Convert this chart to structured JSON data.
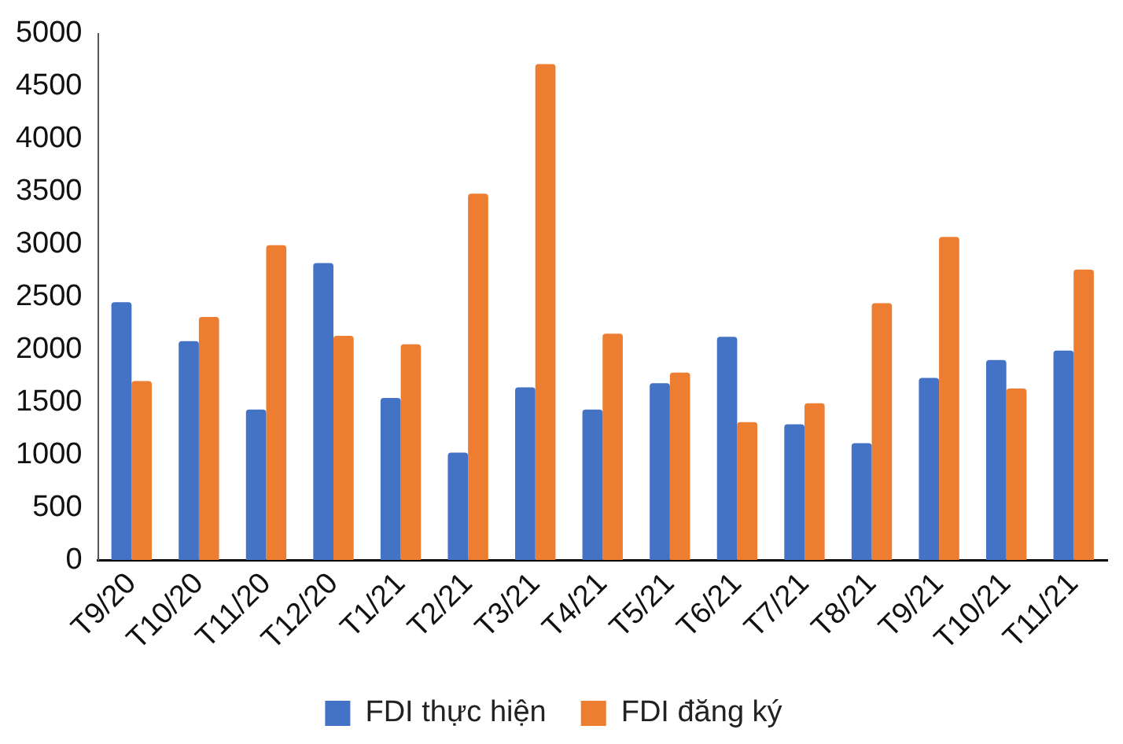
{
  "chart_data": {
    "type": "bar",
    "categories": [
      "T9/20",
      "T10/20",
      "T11/20",
      "T12/20",
      "T1/21",
      "T2/21",
      "T3/21",
      "T4/21",
      "T5/21",
      "T6/21",
      "T7/21",
      "T8/21",
      "T9/21",
      "T10/21",
      "T11/21"
    ],
    "series": [
      {
        "name": "FDI thực hiện",
        "color": "#4472c4",
        "values": [
          2450,
          2080,
          1430,
          2820,
          1540,
          1020,
          1640,
          1430,
          1680,
          2120,
          1290,
          1110,
          1730,
          1900,
          1990
        ]
      },
      {
        "name": "FDI đăng ký",
        "color": "#ed7d31",
        "values": [
          1700,
          2310,
          2990,
          2130,
          2050,
          3480,
          4710,
          2150,
          1780,
          1310,
          1490,
          2440,
          3070,
          1630,
          2760
        ]
      }
    ],
    "ylim": [
      0,
      5000
    ],
    "yticks": [
      0,
      500,
      1000,
      1500,
      2000,
      2500,
      3000,
      3500,
      4000,
      4500,
      5000
    ],
    "grid": false,
    "legend": "bottom"
  }
}
